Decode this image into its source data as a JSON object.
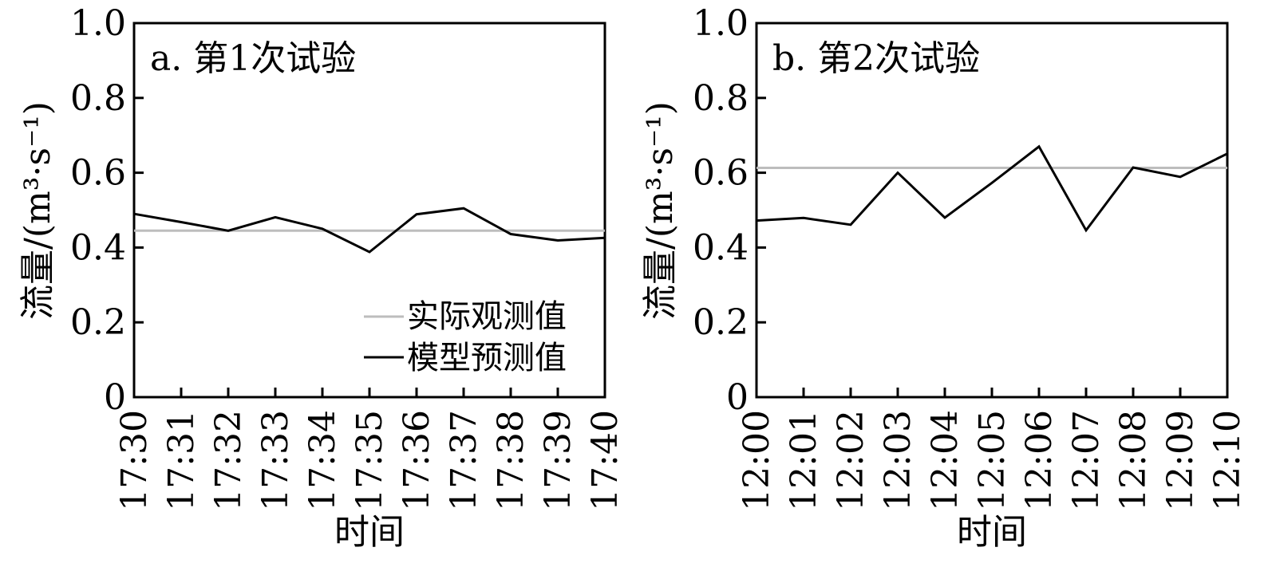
{
  "figure": {
    "panels": [
      {
        "title": "a. 第1次试验",
        "ylabel": "流量/(m³·s⁻¹)",
        "xlabel": "时间"
      },
      {
        "title": "b. 第2次试验",
        "ylabel": "流量/(m³·s⁻¹)",
        "xlabel": "时间"
      }
    ],
    "legend": {
      "observed": "实际观测值",
      "predicted": "模型预测值"
    }
  },
  "colors": {
    "observed": "#bdbdbd",
    "predicted": "#000000",
    "axis": "#000000"
  },
  "chart_data": [
    {
      "type": "line",
      "title": "a. 第1次试验",
      "xlabel": "时间",
      "ylabel": "流量/(m³·s⁻¹)",
      "categories": [
        "17:30",
        "17:31",
        "17:32",
        "17:33",
        "17:34",
        "17:35",
        "17:36",
        "17:37",
        "17:38",
        "17:39",
        "17:40"
      ],
      "y_ticks": [
        "0",
        "0.2",
        "0.4",
        "0.6",
        "0.8",
        "1.0"
      ],
      "ylim": [
        0,
        1.0
      ],
      "grid": false,
      "legend_position": "bottom-right",
      "series": [
        {
          "name": "实际观测值",
          "values": [
            0.445,
            0.445,
            0.445,
            0.445,
            0.445,
            0.445,
            0.445,
            0.445,
            0.445,
            0.445,
            0.445
          ]
        },
        {
          "name": "模型预测值",
          "values": [
            0.49,
            0.468,
            0.445,
            0.481,
            0.45,
            0.388,
            0.489,
            0.505,
            0.436,
            0.419,
            0.426
          ]
        }
      ]
    },
    {
      "type": "line",
      "title": "b. 第2次试验",
      "xlabel": "时间",
      "ylabel": "流量/(m³·s⁻¹)",
      "categories": [
        "12:00",
        "12:01",
        "12:02",
        "12:03",
        "12:04",
        "12:05",
        "12:06",
        "12:07",
        "12:08",
        "12:09",
        "12:10"
      ],
      "y_ticks": [
        "0",
        "0.2",
        "0.4",
        "0.6",
        "0.8",
        "1.0"
      ],
      "ylim": [
        0,
        1.0
      ],
      "grid": false,
      "series": [
        {
          "name": "实际观测值",
          "values": [
            0.613,
            0.613,
            0.613,
            0.613,
            0.613,
            0.613,
            0.613,
            0.613,
            0.613,
            0.613,
            0.613
          ]
        },
        {
          "name": "模型预测值",
          "values": [
            0.472,
            0.479,
            0.461,
            0.6,
            0.48,
            0.573,
            0.67,
            0.446,
            0.614,
            0.589,
            0.651
          ]
        }
      ]
    }
  ]
}
